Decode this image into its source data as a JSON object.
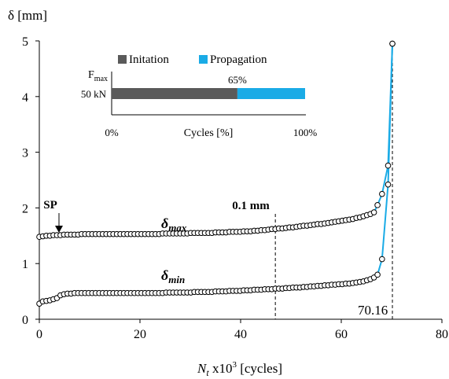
{
  "chart_data": {
    "type": "scatter",
    "ylabel": "δ [mm]",
    "xlabel_parts": {
      "n": "N",
      "sub": "t",
      "mid": " x10",
      "sup": "3",
      "tail": " [cycles]"
    },
    "xlim": [
      0,
      80
    ],
    "ylim": [
      0,
      5
    ],
    "x_ticks": [
      "0",
      "20",
      "40",
      "60",
      "80"
    ],
    "y_ticks": [
      "0",
      "1",
      "2",
      "3",
      "4",
      "5"
    ],
    "grid": false,
    "series": [
      {
        "name": "δmax",
        "label_main": "δ",
        "label_sub": "max",
        "x": [
          0.0,
          0.7,
          1.4,
          2.1,
          2.8,
          3.5,
          4.2,
          4.9,
          5.6,
          6.3,
          7.0,
          7.7,
          8.4,
          9.1,
          9.8,
          10.5,
          11.2,
          11.9,
          12.6,
          13.3,
          14.0,
          14.7,
          15.4,
          16.1,
          16.8,
          17.5,
          18.2,
          18.9,
          19.6,
          20.3,
          21.0,
          21.7,
          22.4,
          23.1,
          23.8,
          24.5,
          25.2,
          25.9,
          26.6,
          27.3,
          28.0,
          28.7,
          29.4,
          30.1,
          30.8,
          31.5,
          32.2,
          32.9,
          33.6,
          34.3,
          35.0,
          35.7,
          36.4,
          37.1,
          37.8,
          38.5,
          39.2,
          39.9,
          40.6,
          41.3,
          42.0,
          42.7,
          43.4,
          44.1,
          44.8,
          45.5,
          46.2,
          46.9,
          47.6,
          48.3,
          49.0,
          49.7,
          50.4,
          51.1,
          51.8,
          52.5,
          53.2,
          53.9,
          54.6,
          55.3,
          56.0,
          56.7,
          57.4,
          58.1,
          58.8,
          59.5,
          60.2,
          60.9,
          61.6,
          62.3,
          63.0,
          63.7,
          64.4,
          65.1,
          65.8,
          66.5,
          67.2,
          68.1,
          69.3,
          70.16
        ],
        "y": [
          1.48,
          1.49,
          1.5,
          1.5,
          1.51,
          1.51,
          1.51,
          1.52,
          1.52,
          1.52,
          1.52,
          1.52,
          1.53,
          1.53,
          1.53,
          1.53,
          1.53,
          1.53,
          1.53,
          1.53,
          1.53,
          1.53,
          1.53,
          1.53,
          1.53,
          1.53,
          1.53,
          1.53,
          1.53,
          1.53,
          1.53,
          1.53,
          1.53,
          1.53,
          1.53,
          1.54,
          1.54,
          1.54,
          1.54,
          1.54,
          1.54,
          1.54,
          1.54,
          1.55,
          1.55,
          1.55,
          1.55,
          1.55,
          1.55,
          1.55,
          1.56,
          1.56,
          1.56,
          1.56,
          1.57,
          1.57,
          1.57,
          1.57,
          1.58,
          1.58,
          1.58,
          1.59,
          1.59,
          1.6,
          1.6,
          1.61,
          1.62,
          1.62,
          1.63,
          1.63,
          1.64,
          1.65,
          1.65,
          1.66,
          1.67,
          1.68,
          1.68,
          1.69,
          1.7,
          1.71,
          1.71,
          1.72,
          1.73,
          1.74,
          1.75,
          1.76,
          1.77,
          1.78,
          1.79,
          1.8,
          1.82,
          1.83,
          1.85,
          1.87,
          1.89,
          1.92,
          2.05,
          2.25,
          2.76,
          4.95
        ]
      },
      {
        "name": "δmin",
        "label_main": "δ",
        "label_sub": "min",
        "x": [
          0.0,
          0.7,
          1.4,
          2.1,
          2.8,
          3.5,
          4.2,
          4.9,
          5.6,
          6.3,
          7.0,
          7.7,
          8.4,
          9.1,
          9.8,
          10.5,
          11.2,
          11.9,
          12.6,
          13.3,
          14.0,
          14.7,
          15.4,
          16.1,
          16.8,
          17.5,
          18.2,
          18.9,
          19.6,
          20.3,
          21.0,
          21.7,
          22.4,
          23.1,
          23.8,
          24.5,
          25.2,
          25.9,
          26.6,
          27.3,
          28.0,
          28.7,
          29.4,
          30.1,
          30.8,
          31.5,
          32.2,
          32.9,
          33.6,
          34.3,
          35.0,
          35.7,
          36.4,
          37.1,
          37.8,
          38.5,
          39.2,
          39.9,
          40.6,
          41.3,
          42.0,
          42.7,
          43.4,
          44.1,
          44.8,
          45.5,
          46.2,
          46.9,
          47.6,
          48.3,
          49.0,
          49.7,
          50.4,
          51.1,
          51.8,
          52.5,
          53.2,
          53.9,
          54.6,
          55.3,
          56.0,
          56.7,
          57.4,
          58.1,
          58.8,
          59.5,
          60.2,
          60.9,
          61.6,
          62.3,
          63.0,
          63.7,
          64.4,
          65.1,
          65.8,
          66.5,
          67.2,
          68.1,
          69.3,
          70.16
        ],
        "y": [
          0.28,
          0.32,
          0.33,
          0.34,
          0.36,
          0.38,
          0.43,
          0.45,
          0.46,
          0.46,
          0.47,
          0.47,
          0.47,
          0.47,
          0.47,
          0.47,
          0.47,
          0.47,
          0.47,
          0.47,
          0.47,
          0.47,
          0.47,
          0.47,
          0.47,
          0.47,
          0.47,
          0.47,
          0.47,
          0.47,
          0.47,
          0.47,
          0.47,
          0.47,
          0.47,
          0.47,
          0.48,
          0.48,
          0.48,
          0.48,
          0.48,
          0.48,
          0.48,
          0.48,
          0.49,
          0.49,
          0.49,
          0.49,
          0.49,
          0.49,
          0.5,
          0.5,
          0.5,
          0.5,
          0.51,
          0.51,
          0.51,
          0.51,
          0.52,
          0.52,
          0.52,
          0.53,
          0.53,
          0.53,
          0.54,
          0.54,
          0.54,
          0.55,
          0.55,
          0.55,
          0.56,
          0.56,
          0.57,
          0.57,
          0.57,
          0.58,
          0.58,
          0.59,
          0.59,
          0.6,
          0.6,
          0.61,
          0.61,
          0.62,
          0.62,
          0.63,
          0.63,
          0.64,
          0.64,
          0.65,
          0.66,
          0.67,
          0.68,
          0.7,
          0.72,
          0.75,
          0.8,
          1.08,
          2.42,
          4.95
        ]
      }
    ],
    "curve_color": "#1AABE6",
    "marker_fill": "#ffffff",
    "marker_stroke": "#000000",
    "annotations": {
      "sp": {
        "label": "SP",
        "x": 4.2,
        "y": 1.51
      },
      "cross_01": {
        "label": "0.1 mm",
        "x": 46.9
      },
      "end": {
        "label": "70.16",
        "x": 70.16
      }
    },
    "inset": {
      "type": "stacked-bar",
      "legend": [
        {
          "name": "Initation",
          "color": "#5A5A5A"
        },
        {
          "name": "Propagation",
          "color": "#1AABE6"
        }
      ],
      "y_title_main": "F",
      "y_title_sub": "max",
      "category": "50 kN",
      "values": [
        65,
        35
      ],
      "split_label": "65%",
      "xlabel": "Cycles [%]",
      "x_ticks": [
        "0%",
        "100%"
      ]
    }
  }
}
